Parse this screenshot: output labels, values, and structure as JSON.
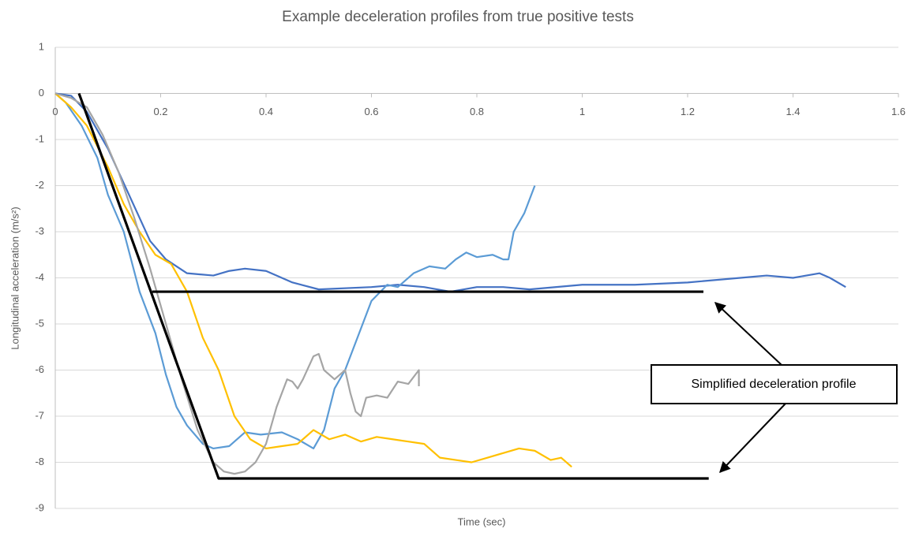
{
  "chart_data": {
    "type": "line",
    "title": "Example deceleration profiles from true positive tests",
    "x_label": "Time (sec)",
    "y_label": "Longitudinal acceleration (m/s²)",
    "annotation": "Simplified deceleration profile",
    "xlim": [
      0,
      1.6
    ],
    "xticks": [
      0,
      0.2,
      0.4,
      0.6,
      0.8,
      1,
      1.2,
      1.4,
      1.6
    ],
    "ylim": [
      -9,
      1
    ],
    "yticks": [
      1,
      0,
      -1,
      -2,
      -3,
      -4,
      -5,
      -6,
      -7,
      -8,
      -9
    ],
    "grid": true,
    "series": [
      {
        "color": "#4472c4",
        "width": 2.2,
        "x": [
          0,
          0.03,
          0.06,
          0.1,
          0.14,
          0.18,
          0.21,
          0.25,
          0.3,
          0.33,
          0.36,
          0.4,
          0.45,
          0.5,
          0.6,
          0.65,
          0.7,
          0.75,
          0.8,
          0.85,
          0.9,
          1.0,
          1.1,
          1.2,
          1.3,
          1.35,
          1.4,
          1.45,
          1.47,
          1.5
        ],
        "values": [
          0,
          -0.05,
          -0.4,
          -1.2,
          -2.2,
          -3.2,
          -3.6,
          -3.9,
          -3.95,
          -3.85,
          -3.8,
          -3.85,
          -4.1,
          -4.25,
          -4.2,
          -4.15,
          -4.2,
          -4.3,
          -4.2,
          -4.2,
          -4.25,
          -4.15,
          -4.15,
          -4.1,
          -4.0,
          -3.95,
          -4.0,
          -3.9,
          -4.0,
          -4.2
        ]
      },
      {
        "color": "#5b9bd5",
        "width": 2.2,
        "x": [
          0,
          0.02,
          0.05,
          0.08,
          0.1,
          0.13,
          0.16,
          0.19,
          0.21,
          0.23,
          0.25,
          0.28,
          0.3,
          0.33,
          0.36,
          0.39,
          0.43,
          0.46,
          0.49,
          0.51,
          0.53,
          0.55,
          0.58,
          0.6,
          0.63,
          0.65,
          0.68,
          0.71,
          0.74,
          0.76,
          0.78,
          0.8,
          0.83,
          0.85,
          0.86,
          0.87,
          0.89,
          0.91
        ],
        "values": [
          0,
          -0.2,
          -0.7,
          -1.4,
          -2.2,
          -3.0,
          -4.3,
          -5.2,
          -6.1,
          -6.8,
          -7.2,
          -7.6,
          -7.7,
          -7.65,
          -7.35,
          -7.4,
          -7.35,
          -7.5,
          -7.7,
          -7.3,
          -6.4,
          -6.0,
          -5.1,
          -4.5,
          -4.15,
          -4.2,
          -3.9,
          -3.75,
          -3.8,
          -3.6,
          -3.45,
          -3.55,
          -3.5,
          -3.6,
          -3.6,
          -3.0,
          -2.6,
          -2.0
        ]
      },
      {
        "color": "#ffc000",
        "width": 2.2,
        "x": [
          0,
          0.03,
          0.06,
          0.1,
          0.13,
          0.16,
          0.19,
          0.22,
          0.25,
          0.28,
          0.31,
          0.34,
          0.37,
          0.4,
          0.43,
          0.46,
          0.49,
          0.52,
          0.55,
          0.58,
          0.61,
          0.64,
          0.67,
          0.7,
          0.73,
          0.76,
          0.79,
          0.82,
          0.85,
          0.88,
          0.91,
          0.94,
          0.96,
          0.98
        ],
        "values": [
          0,
          -0.3,
          -0.7,
          -1.6,
          -2.4,
          -3.0,
          -3.5,
          -3.7,
          -4.3,
          -5.3,
          -6.0,
          -7.0,
          -7.5,
          -7.7,
          -7.65,
          -7.6,
          -7.3,
          -7.5,
          -7.4,
          -7.55,
          -7.45,
          -7.5,
          -7.55,
          -7.6,
          -7.9,
          -7.95,
          -8.0,
          -7.9,
          -7.8,
          -7.7,
          -7.75,
          -7.95,
          -7.9,
          -8.1
        ]
      },
      {
        "color": "#a5a5a5",
        "width": 2.2,
        "x": [
          0,
          0.03,
          0.06,
          0.09,
          0.12,
          0.15,
          0.18,
          0.21,
          0.24,
          0.27,
          0.3,
          0.32,
          0.34,
          0.36,
          0.38,
          0.4,
          0.42,
          0.44,
          0.45,
          0.46,
          0.47,
          0.49,
          0.5,
          0.51,
          0.53,
          0.55,
          0.56,
          0.57,
          0.58,
          0.59,
          0.61,
          0.63,
          0.65,
          0.67,
          0.69,
          0.69
        ],
        "values": [
          0,
          -0.1,
          -0.3,
          -0.9,
          -1.7,
          -2.7,
          -3.8,
          -5.0,
          -6.2,
          -7.3,
          -8.0,
          -8.2,
          -8.25,
          -8.2,
          -8.0,
          -7.6,
          -6.8,
          -6.2,
          -6.25,
          -6.4,
          -6.2,
          -5.7,
          -5.65,
          -6.0,
          -6.2,
          -6.0,
          -6.5,
          -6.9,
          -7.0,
          -6.6,
          -6.55,
          -6.6,
          -6.25,
          -6.3,
          -6.0,
          -6.35
        ]
      },
      {
        "color": "#000000",
        "width": 3.2,
        "x": [
          0.045,
          0.31,
          1.24
        ],
        "values": [
          0,
          -8.35,
          -8.35
        ]
      },
      {
        "color": "#000000",
        "width": 3.2,
        "x": [
          0.184,
          1.23
        ],
        "values": [
          -4.3,
          -4.3
        ]
      }
    ]
  }
}
